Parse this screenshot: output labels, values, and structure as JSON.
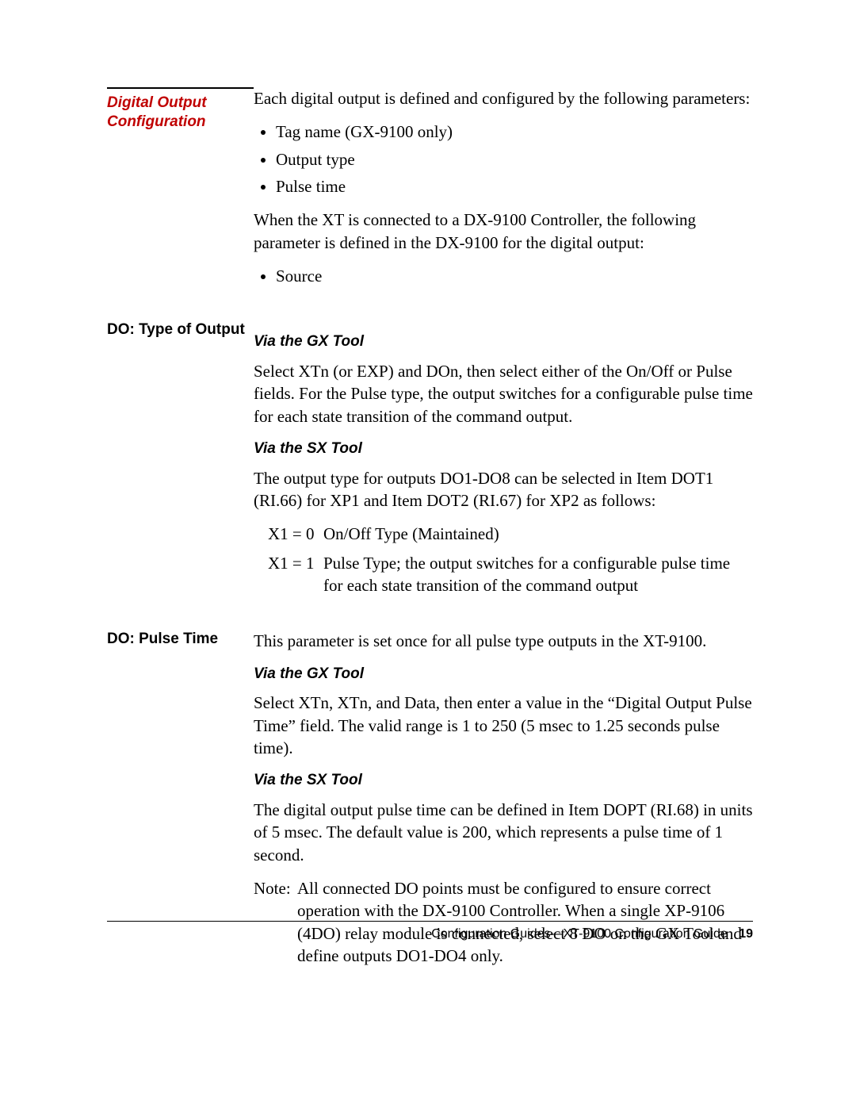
{
  "sections": [
    {
      "sidebar_style": "red",
      "sidebar_text": "Digital Output Configuration",
      "sidebar_topline": true,
      "blocks": [
        {
          "type": "para",
          "text": "Each digital output is defined and configured by the following parameters:"
        },
        {
          "type": "bullets",
          "items": [
            "Tag name (GX-9100 only)",
            "Output type",
            "Pulse time"
          ]
        },
        {
          "type": "para",
          "text": "When the XT is connected to a DX-9100 Controller, the following parameter is defined in the DX-9100 for the digital output:"
        },
        {
          "type": "bullets",
          "items": [
            "Source"
          ]
        }
      ]
    },
    {
      "sidebar_style": "bold",
      "sidebar_text": "DO:  Type of Output",
      "blocks": [
        {
          "type": "subhead",
          "text": "Via the GX Tool"
        },
        {
          "type": "para",
          "text": "Select XTn (or EXP) and DOn, then select either of the On/Off or Pulse fields.  For the Pulse type, the output switches for a configurable pulse time for each state transition of the command output."
        },
        {
          "type": "subhead",
          "text": "Via the SX Tool"
        },
        {
          "type": "para",
          "text": "The output type for outputs DO1-DO8 can be selected in Item DOT1 (RI.66) for XP1 and Item DOT2 (RI.67) for XP2 as follows:"
        },
        {
          "type": "defs",
          "rows": [
            {
              "k": "X1 = 0",
              "v": "On/Off Type (Maintained)"
            },
            {
              "k": "X1 = 1",
              "v": "Pulse Type; the output switches for a configurable pulse time for each state transition of the command output"
            }
          ]
        }
      ]
    },
    {
      "sidebar_style": "bold",
      "sidebar_text": "DO:  Pulse Time",
      "blocks": [
        {
          "type": "para",
          "text": "This parameter is set once for all pulse type outputs in the XT-9100."
        },
        {
          "type": "subhead",
          "text": "Via the GX Tool"
        },
        {
          "type": "para",
          "text": "Select XTn, XTn, and Data, then enter a value in the “Digital Output Pulse Time” field.  The valid range is 1 to 250 (5 msec to 1.25 seconds pulse time)."
        },
        {
          "type": "subhead",
          "text": "Via the SX Tool"
        },
        {
          "type": "para",
          "text": "The digital output pulse time can be defined in Item DOPT (RI.68) in units of 5 msec.  The default value is 200, which represents a pulse time of 1 second."
        },
        {
          "type": "note",
          "label": "Note:",
          "text": "All connected DO points must be configured to ensure correct operation with the DX-9100 Controller.  When a single XP-9106 (4DO) relay module is connected, select 8 DO on the GX Tool and define outputs DO1-DO4 only."
        }
      ]
    }
  ],
  "footer": {
    "text": "Configuration Guides—XT-9100 Configuration Guide",
    "page": "19"
  }
}
